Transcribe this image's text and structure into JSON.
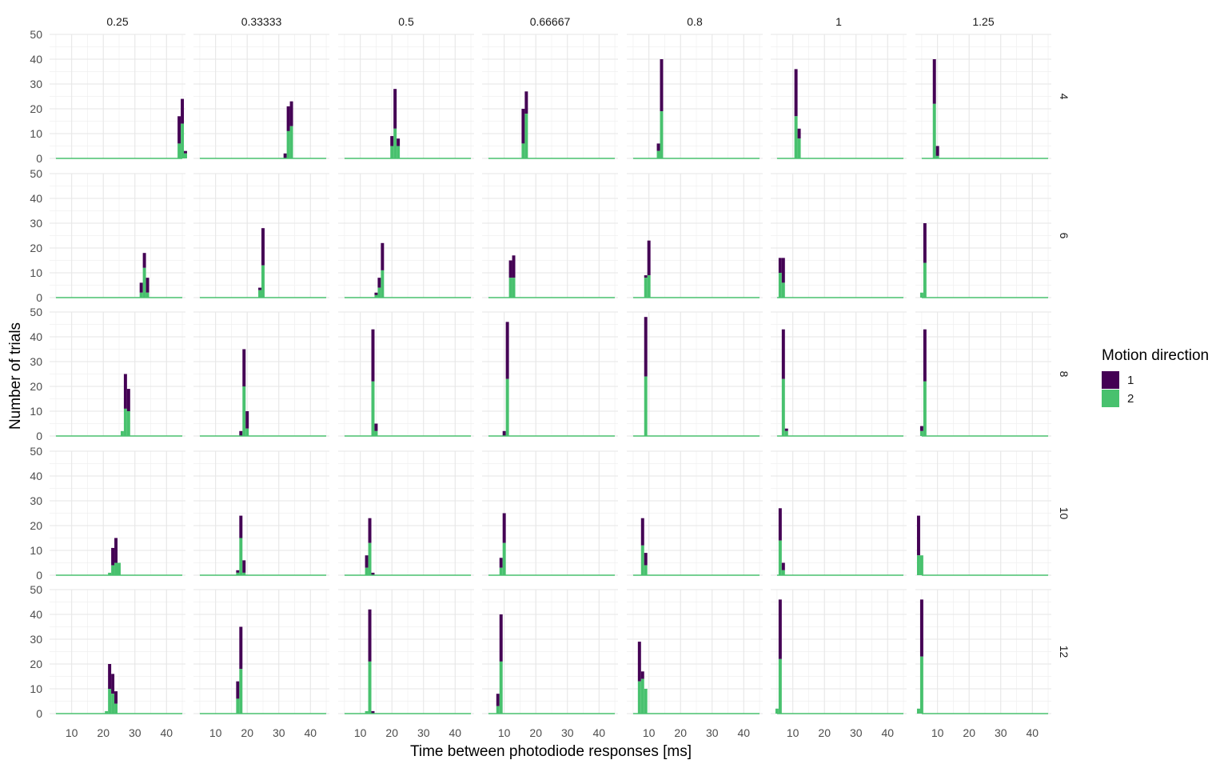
{
  "chart_data": {
    "type": "bar",
    "stacked": true,
    "facet_cols_label_values": [
      "0.25",
      "0.33333",
      "0.5",
      "0.66667",
      "0.8",
      "1",
      "1.25"
    ],
    "facet_rows_label_values": [
      "4",
      "6",
      "8",
      "10",
      "12"
    ],
    "xlabel": "Time between photodiode responses [ms]",
    "ylabel": "Number of trials",
    "xlim": [
      3,
      46
    ],
    "ylim": [
      0,
      50
    ],
    "xticks": [
      10,
      20,
      30,
      40
    ],
    "yticks": [
      0,
      10,
      20,
      30,
      40,
      50
    ],
    "bin_width_ms": 1,
    "grid": true,
    "legend": {
      "title": "Motion direction",
      "position": "right",
      "entries": [
        {
          "label": "1",
          "color": "#440154"
        },
        {
          "label": "2",
          "color": "#48C16E"
        }
      ]
    },
    "panels": [
      {
        "row": "4",
        "col": "0.25",
        "bars": [
          {
            "x": 44,
            "s2": 6,
            "total": 17
          },
          {
            "x": 45,
            "s2": 14,
            "total": 24
          },
          {
            "x": 46,
            "s2": 2,
            "total": 3
          }
        ]
      },
      {
        "row": "4",
        "col": "0.33333",
        "bars": [
          {
            "x": 32,
            "s2": 0,
            "total": 2
          },
          {
            "x": 33,
            "s2": 11,
            "total": 21
          },
          {
            "x": 34,
            "s2": 13,
            "total": 23
          }
        ]
      },
      {
        "row": "4",
        "col": "0.5",
        "bars": [
          {
            "x": 20,
            "s2": 5,
            "total": 9
          },
          {
            "x": 21,
            "s2": 12,
            "total": 28
          },
          {
            "x": 22,
            "s2": 5,
            "total": 8
          }
        ]
      },
      {
        "row": "4",
        "col": "0.66667",
        "bars": [
          {
            "x": 16,
            "s2": 6,
            "total": 20
          },
          {
            "x": 17,
            "s2": 18,
            "total": 27
          }
        ]
      },
      {
        "row": "4",
        "col": "0.8",
        "bars": [
          {
            "x": 13,
            "s2": 3,
            "total": 6
          },
          {
            "x": 14,
            "s2": 19,
            "total": 40
          }
        ]
      },
      {
        "row": "4",
        "col": "1",
        "bars": [
          {
            "x": 11,
            "s2": 17,
            "total": 36
          },
          {
            "x": 12,
            "s2": 8,
            "total": 12
          }
        ]
      },
      {
        "row": "4",
        "col": "1.25",
        "bars": [
          {
            "x": 9,
            "s2": 22,
            "total": 40
          },
          {
            "x": 10,
            "s2": 1,
            "total": 5
          }
        ]
      },
      {
        "row": "6",
        "col": "0.25",
        "bars": [
          {
            "x": 32,
            "s2": 2,
            "total": 6
          },
          {
            "x": 33,
            "s2": 12,
            "total": 18
          },
          {
            "x": 34,
            "s2": 2,
            "total": 8
          }
        ]
      },
      {
        "row": "6",
        "col": "0.33333",
        "bars": [
          {
            "x": 24,
            "s2": 3,
            "total": 4
          },
          {
            "x": 25,
            "s2": 13,
            "total": 28
          }
        ]
      },
      {
        "row": "6",
        "col": "0.5",
        "bars": [
          {
            "x": 15,
            "s2": 1,
            "total": 2
          },
          {
            "x": 16,
            "s2": 4,
            "total": 8
          },
          {
            "x": 17,
            "s2": 11,
            "total": 22
          }
        ]
      },
      {
        "row": "6",
        "col": "0.66667",
        "bars": [
          {
            "x": 12,
            "s2": 8,
            "total": 15
          },
          {
            "x": 13,
            "s2": 8,
            "total": 17
          }
        ]
      },
      {
        "row": "6",
        "col": "0.8",
        "bars": [
          {
            "x": 9,
            "s2": 8,
            "total": 9
          },
          {
            "x": 10,
            "s2": 9,
            "total": 23
          }
        ]
      },
      {
        "row": "6",
        "col": "1",
        "bars": [
          {
            "x": 6,
            "s2": 10,
            "total": 16
          },
          {
            "x": 7,
            "s2": 6,
            "total": 16
          }
        ]
      },
      {
        "row": "6",
        "col": "1.25",
        "bars": [
          {
            "x": 5,
            "s2": 2,
            "total": 2
          },
          {
            "x": 6,
            "s2": 14,
            "total": 30
          }
        ]
      },
      {
        "row": "8",
        "col": "0.25",
        "bars": [
          {
            "x": 26,
            "s2": 2,
            "total": 2
          },
          {
            "x": 27,
            "s2": 11,
            "total": 25
          },
          {
            "x": 28,
            "s2": 10,
            "total": 19
          }
        ]
      },
      {
        "row": "8",
        "col": "0.33333",
        "bars": [
          {
            "x": 18,
            "s2": 0,
            "total": 2
          },
          {
            "x": 19,
            "s2": 20,
            "total": 35
          },
          {
            "x": 20,
            "s2": 3,
            "total": 10
          }
        ]
      },
      {
        "row": "8",
        "col": "0.5",
        "bars": [
          {
            "x": 14,
            "s2": 22,
            "total": 43
          },
          {
            "x": 15,
            "s2": 2,
            "total": 5
          }
        ]
      },
      {
        "row": "8",
        "col": "0.66667",
        "bars": [
          {
            "x": 10,
            "s2": 0,
            "total": 2
          },
          {
            "x": 11,
            "s2": 23,
            "total": 46
          }
        ]
      },
      {
        "row": "8",
        "col": "0.8",
        "bars": [
          {
            "x": 9,
            "s2": 24,
            "total": 48
          }
        ]
      },
      {
        "row": "8",
        "col": "1",
        "bars": [
          {
            "x": 7,
            "s2": 23,
            "total": 43
          },
          {
            "x": 8,
            "s2": 2,
            "total": 3
          }
        ]
      },
      {
        "row": "8",
        "col": "1.25",
        "bars": [
          {
            "x": 5,
            "s2": 2,
            "total": 4
          },
          {
            "x": 6,
            "s2": 22,
            "total": 43
          }
        ]
      },
      {
        "row": "10",
        "col": "0.25",
        "bars": [
          {
            "x": 22,
            "s2": 1,
            "total": 1
          },
          {
            "x": 23,
            "s2": 4,
            "total": 11
          },
          {
            "x": 24,
            "s2": 5,
            "total": 15
          },
          {
            "x": 25,
            "s2": 5,
            "total": 5
          }
        ]
      },
      {
        "row": "10",
        "col": "0.33333",
        "bars": [
          {
            "x": 17,
            "s2": 1,
            "total": 2
          },
          {
            "x": 18,
            "s2": 15,
            "total": 24
          },
          {
            "x": 19,
            "s2": 1,
            "total": 6
          }
        ]
      },
      {
        "row": "10",
        "col": "0.5",
        "bars": [
          {
            "x": 12,
            "s2": 3,
            "total": 8
          },
          {
            "x": 13,
            "s2": 13,
            "total": 23
          },
          {
            "x": 14,
            "s2": 0,
            "total": 1
          }
        ]
      },
      {
        "row": "10",
        "col": "0.66667",
        "bars": [
          {
            "x": 9,
            "s2": 3,
            "total": 7
          },
          {
            "x": 10,
            "s2": 13,
            "total": 25
          }
        ]
      },
      {
        "row": "10",
        "col": "0.8",
        "bars": [
          {
            "x": 8,
            "s2": 12,
            "total": 23
          },
          {
            "x": 9,
            "s2": 4,
            "total": 9
          }
        ]
      },
      {
        "row": "10",
        "col": "1",
        "bars": [
          {
            "x": 6,
            "s2": 14,
            "total": 27
          },
          {
            "x": 7,
            "s2": 2,
            "total": 5
          }
        ]
      },
      {
        "row": "10",
        "col": "1.25",
        "bars": [
          {
            "x": 4,
            "s2": 8,
            "total": 24
          },
          {
            "x": 5,
            "s2": 8,
            "total": 8
          }
        ]
      },
      {
        "row": "12",
        "col": "0.25",
        "bars": [
          {
            "x": 21,
            "s2": 1,
            "total": 1
          },
          {
            "x": 22,
            "s2": 10,
            "total": 20
          },
          {
            "x": 23,
            "s2": 8,
            "total": 16
          },
          {
            "x": 24,
            "s2": 4,
            "total": 9
          }
        ]
      },
      {
        "row": "12",
        "col": "0.33333",
        "bars": [
          {
            "x": 17,
            "s2": 6,
            "total": 13
          },
          {
            "x": 18,
            "s2": 18,
            "total": 35
          }
        ]
      },
      {
        "row": "12",
        "col": "0.5",
        "bars": [
          {
            "x": 12,
            "s2": 1,
            "total": 1
          },
          {
            "x": 13,
            "s2": 21,
            "total": 42
          },
          {
            "x": 14,
            "s2": 0,
            "total": 1
          }
        ]
      },
      {
        "row": "12",
        "col": "0.66667",
        "bars": [
          {
            "x": 8,
            "s2": 3,
            "total": 8
          },
          {
            "x": 9,
            "s2": 21,
            "total": 40
          }
        ]
      },
      {
        "row": "12",
        "col": "0.8",
        "bars": [
          {
            "x": 7,
            "s2": 13,
            "total": 29
          },
          {
            "x": 8,
            "s2": 14,
            "total": 17
          },
          {
            "x": 9,
            "s2": 10,
            "total": 10
          }
        ]
      },
      {
        "row": "12",
        "col": "1",
        "bars": [
          {
            "x": 5,
            "s2": 2,
            "total": 2
          },
          {
            "x": 6,
            "s2": 22,
            "total": 46
          }
        ]
      },
      {
        "row": "12",
        "col": "1.25",
        "bars": [
          {
            "x": 4,
            "s2": 2,
            "total": 2
          },
          {
            "x": 5,
            "s2": 23,
            "total": 46
          }
        ]
      }
    ]
  }
}
